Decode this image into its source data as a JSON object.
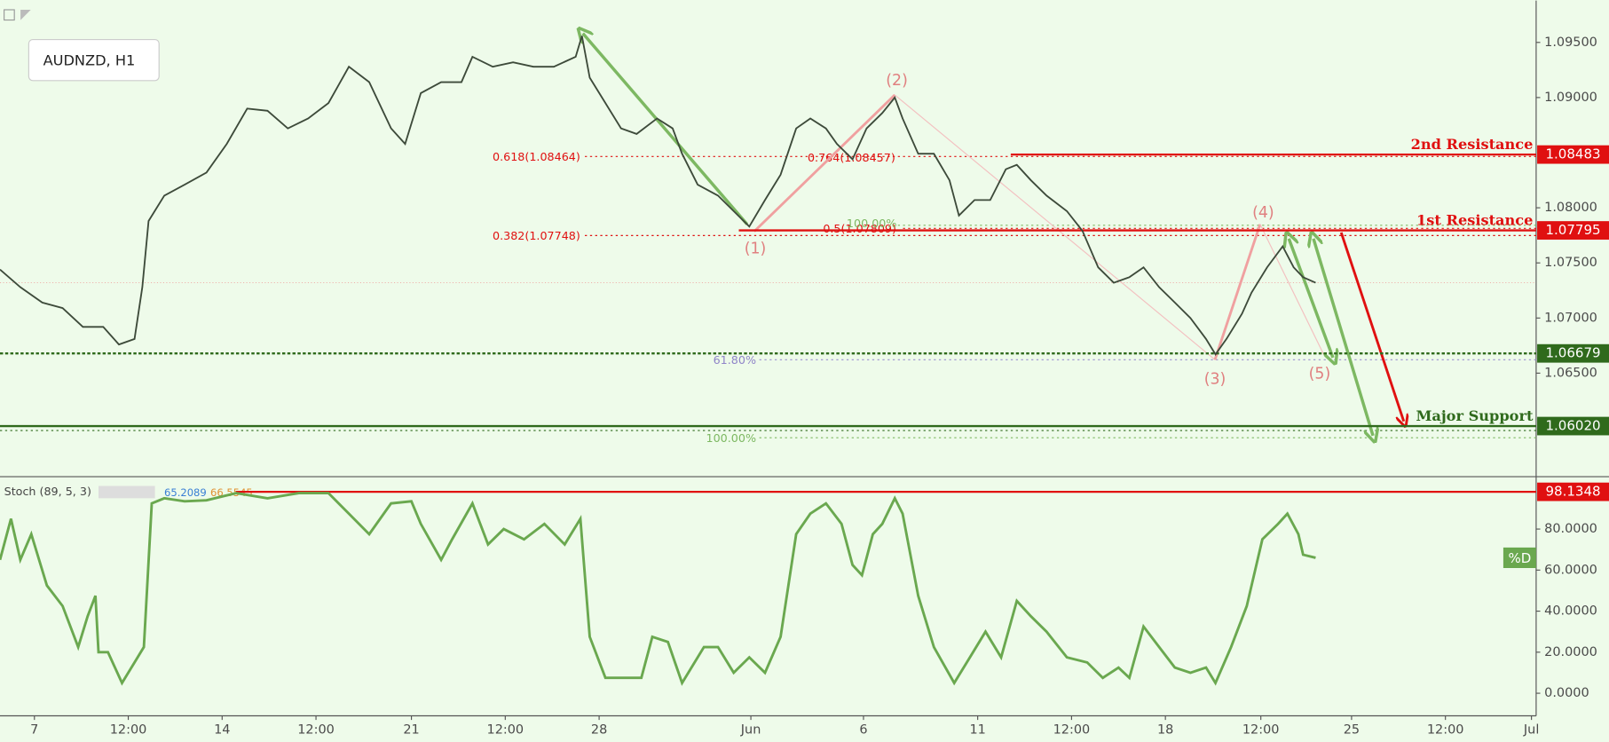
{
  "chart_data": [
    {
      "type": "line",
      "title": "AUDNZD, H1",
      "xlim": [
        -22,
        960
      ],
      "ylim": [
        1.0557,
        1.0988
      ],
      "x": [
        -22,
        -9,
        5,
        18,
        31,
        44,
        54,
        64,
        69,
        73,
        83,
        96,
        110,
        123,
        136,
        149,
        162,
        175,
        188,
        201,
        214,
        228,
        237,
        247,
        260,
        273,
        280,
        293,
        306,
        319,
        332,
        346,
        350,
        355,
        365,
        375,
        385,
        398,
        408,
        414,
        424,
        437,
        447,
        457,
        467,
        477,
        487,
        496,
        506,
        513,
        523,
        532,
        542,
        550,
        555,
        565,
        575,
        585,
        591,
        601,
        611,
        621,
        628,
        637,
        647,
        660,
        670,
        680,
        690,
        700,
        709,
        719,
        729,
        739,
        749,
        755,
        762,
        772,
        778,
        788,
        798,
        805,
        811,
        819
      ],
      "series": [
        {
          "color": "#3d4a3a",
          "values": [
            1.0744,
            1.0728,
            1.0714,
            1.0709,
            1.0692,
            1.0692,
            1.0676,
            1.0681,
            1.0728,
            1.0788,
            1.0811,
            1.0821,
            1.0832,
            1.0858,
            1.089,
            1.0888,
            1.0872,
            1.0881,
            1.0895,
            1.0928,
            1.0914,
            1.0872,
            1.0858,
            1.0904,
            1.0914,
            1.0914,
            1.0937,
            1.0928,
            1.0932,
            1.0928,
            1.0928,
            1.0937,
            1.0956,
            1.0918,
            1.0895,
            1.0872,
            1.0867,
            1.0881,
            1.0872,
            1.0849,
            1.0821,
            1.0811,
            1.0797,
            1.0783,
            1.0807,
            1.083,
            1.0872,
            1.0881,
            1.0872,
            1.0858,
            1.0844,
            1.0872,
            1.0886,
            1.09,
            1.0881,
            1.0849,
            1.0849,
            1.0825,
            1.0793,
            1.0807,
            1.0807,
            1.0835,
            1.0839,
            1.0825,
            1.0811,
            1.0797,
            1.0779,
            1.0746,
            1.0732,
            1.0737,
            1.0746,
            1.0728,
            1.0714,
            1.07,
            1.0681,
            1.0667,
            1.0681,
            1.0704,
            1.0723,
            1.0746,
            1.0765,
            1.0746,
            1.0737,
            1.0732
          ]
        }
      ],
      "yticks": [
        {
          "value": 1.065,
          "label": "1.06500"
        },
        {
          "value": 1.07,
          "label": "1.07000"
        },
        {
          "value": 1.075,
          "label": "1.07500"
        },
        {
          "value": 1.08,
          "label": "1.08000"
        },
        {
          "value": 1.09,
          "label": "1.09000"
        },
        {
          "value": 1.095,
          "label": "1.09500"
        }
      ],
      "levels": [
        {
          "name": "2nd Resistance",
          "value": 1.08483,
          "label": "1.08483",
          "color": "#e01010"
        },
        {
          "name": "1st Resistance",
          "value": 1.07795,
          "label": "1.07795",
          "color": "#e01010"
        },
        {
          "value": 1.06679,
          "label": "1.06679",
          "color": "#2f6a1c"
        },
        {
          "name": "Major Support",
          "value": 1.0602,
          "label": "1.06020",
          "color": "#2f6a1c"
        }
      ],
      "fib_labels": [
        "0.618(1.08464)",
        "0.382(1.07748)",
        "0.764(1.08457)",
        "0.5(1.07809)",
        "100.00%",
        "61.80%",
        "100.00%"
      ],
      "wave_labels": [
        "(1)",
        "(2)",
        "(3)",
        "(4)",
        "(5)"
      ]
    },
    {
      "type": "line",
      "title": "Stoch (89, 5, 3)",
      "readouts": [
        65.2089,
        66.5545
      ],
      "xlim": [
        -22,
        960
      ],
      "ylim": [
        -11,
        105
      ],
      "x": [
        -22,
        -15,
        -9,
        -2,
        8,
        18,
        28,
        34,
        39,
        41,
        47,
        56,
        64,
        70,
        75,
        83,
        96,
        110,
        129,
        149,
        169,
        188,
        201,
        214,
        228,
        241,
        247,
        260,
        267,
        280,
        290,
        300,
        313,
        326,
        339,
        349,
        355,
        365,
        378,
        388,
        395,
        405,
        414,
        428,
        437,
        447,
        457,
        467,
        477,
        487,
        496,
        506,
        516,
        523,
        529,
        536,
        542,
        550,
        555,
        565,
        575,
        588,
        598,
        608,
        618,
        628,
        637,
        647,
        660,
        673,
        683,
        693,
        700,
        709,
        719,
        729,
        739,
        749,
        755,
        765,
        775,
        785,
        795,
        801,
        808,
        811,
        819
      ],
      "series": [
        {
          "name": "%D",
          "color": "#6aa84f",
          "values": [
            65,
            85,
            65,
            77.5,
            52.5,
            42.5,
            22.5,
            37.5,
            47.5,
            20,
            20,
            5,
            15,
            22.5,
            92.5,
            95,
            93.5,
            94,
            97.5,
            95,
            97.5,
            97.5,
            87.5,
            77.5,
            92.5,
            93.5,
            82.5,
            65,
            75,
            92.5,
            72.5,
            80,
            75,
            82.5,
            72.5,
            85,
            27.5,
            7.5,
            7.5,
            7.5,
            27.5,
            25,
            5,
            22.5,
            22.5,
            10,
            17.5,
            10,
            27.5,
            77.5,
            87.5,
            92.5,
            82.5,
            62.5,
            57.5,
            77.5,
            82.5,
            95,
            87.5,
            47.5,
            22.5,
            5,
            17.5,
            30,
            17.5,
            45,
            37.5,
            30,
            17.5,
            15,
            7.5,
            12.5,
            7.5,
            32.5,
            22.5,
            12.5,
            10,
            12.5,
            5,
            22.5,
            42.5,
            75,
            82.5,
            87.5,
            77.5,
            67.5,
            66
          ]
        }
      ],
      "yticks": [
        {
          "value": 0,
          "label": "0.0000"
        },
        {
          "value": 20,
          "label": "20.0000"
        },
        {
          "value": 40,
          "label": "40.0000"
        },
        {
          "value": 60,
          "label": "60.0000"
        },
        {
          "value": 80,
          "label": "80.0000"
        }
      ],
      "levels": [
        {
          "value": 98.1348,
          "label": "98.1348",
          "color": "#e01010"
        }
      ],
      "xticks": [
        {
          "value": 0,
          "label": "7"
        },
        {
          "value": 60,
          "label": "12:00"
        },
        {
          "value": 120,
          "label": "14"
        },
        {
          "value": 180,
          "label": "12:00"
        },
        {
          "value": 241,
          "label": "21"
        },
        {
          "value": 301,
          "label": "12:00"
        },
        {
          "value": 361,
          "label": "28"
        },
        {
          "value": 458,
          "label": "Jun"
        },
        {
          "value": 530,
          "label": "6"
        },
        {
          "value": 603,
          "label": "11"
        },
        {
          "value": 663,
          "label": "12:00"
        },
        {
          "value": 723,
          "label": "18"
        },
        {
          "value": 784,
          "label": "12:00"
        },
        {
          "value": 842,
          "label": "25"
        },
        {
          "value": 902,
          "label": "12:00"
        },
        {
          "value": 957,
          "label": "Jul"
        }
      ]
    }
  ]
}
